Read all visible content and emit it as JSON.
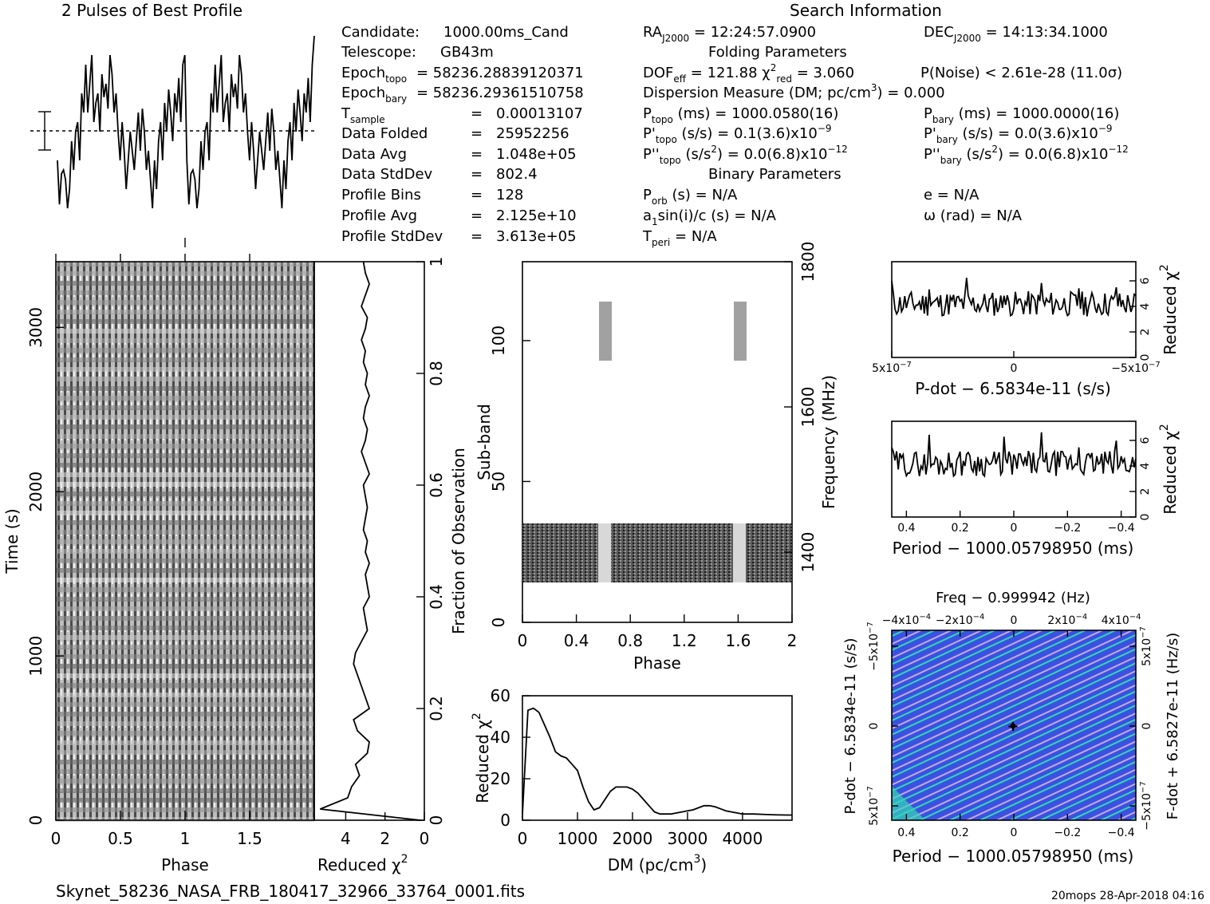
{
  "header": {
    "profile_title": "2 Pulses of Best Profile",
    "search_title": "Search Information",
    "folding_title": "Folding Parameters",
    "binary_title": "Binary Parameters"
  },
  "info": {
    "col1": [
      [
        "Candidate:",
        "1000.00ms_Cand"
      ],
      [
        "Telescope:",
        "GB43m"
      ],
      [
        "Epoch_topo",
        "= 58236.28839120371"
      ],
      [
        "Epoch_bary",
        "= 58236.29361510758"
      ],
      [
        "T_sample",
        "=",
        "0.00013107"
      ],
      [
        "Data Folded",
        "=",
        "25952256"
      ],
      [
        "Data Avg",
        "=",
        "1.048e+05"
      ],
      [
        "Data StdDev",
        "=",
        "802.4"
      ],
      [
        "Profile Bins",
        "=",
        "128"
      ],
      [
        "Profile Avg",
        "=",
        "2.125e+10"
      ],
      [
        "Profile StdDev",
        "=",
        "3.613e+05"
      ]
    ],
    "ra": "12:24:57.0900",
    "dec": "14:13:34.1000",
    "dof": "121.88",
    "chi2_red": "3.060",
    "pnoise": "P(Noise) < 2.61e-28   (11.0σ)",
    "dm_line": "Dispersion Measure (DM; pc/cm",
    "dm_value": ") = 0.000",
    "p_topo": "1000.0580(16)",
    "p_bary": "1000.0000(16)",
    "pd_topo": "0.1(3.6)x10",
    "pd_bary": "0.0(3.6)x10",
    "pdd_topo": "0.0(6.8)x10",
    "pdd_bary": "0.0(6.8)x10",
    "exp9": "−9",
    "exp12": "−12",
    "porb": "N/A",
    "ecc": "N/A",
    "a1sini": "N/A",
    "omega": "N/A",
    "tperi": "N/A"
  },
  "footer": {
    "filename": "Skynet_58236_NASA_FRB_180417_32966_33764_0001.fits",
    "stamp": "20mops 28-Apr-2018 04:16"
  },
  "colors": {
    "ink": "#000000",
    "subband_shade": "#888888",
    "pdot_bg": "#3a52e0",
    "pdot_streak": "#33d6b8",
    "pdot_pink": "#c9a6e8"
  },
  "chart_data": [
    {
      "id": "profile",
      "type": "line",
      "title": "2 Pulses of Best Profile",
      "xlim": [
        0,
        2
      ],
      "description_values": [
        0.35,
        0.12,
        0.28,
        0.3,
        0.25,
        0.1,
        0.2,
        0.45,
        0.3,
        0.5,
        0.55,
        0.35,
        0.7,
        0.6,
        0.85,
        0.6,
        0.75,
        0.9,
        0.55,
        0.65,
        0.7,
        0.5,
        0.8,
        0.68,
        0.75,
        0.62,
        0.9,
        0.8,
        0.6,
        0.7,
        0.5,
        0.35,
        0.55,
        0.4,
        0.2,
        0.35,
        0.5,
        0.4,
        0.3,
        0.45,
        0.6,
        0.4,
        0.62,
        0.5,
        0.3,
        0.4,
        0.25,
        0.1,
        0.35,
        0.2,
        0.45,
        0.55,
        0.35,
        0.65,
        0.5,
        0.72,
        0.6,
        0.45,
        0.7,
        0.6,
        0.78,
        0.55,
        0.85,
        0.9,
        0.35,
        0.12,
        0.28,
        0.3,
        0.25,
        0.1,
        0.2,
        0.45,
        0.3,
        0.5,
        0.55,
        0.35,
        0.7,
        0.6,
        0.85,
        0.6,
        0.75,
        0.9,
        0.55,
        0.65,
        0.7,
        0.5,
        0.8,
        0.68,
        0.75,
        0.62,
        0.9,
        0.8,
        0.6,
        0.7,
        0.5,
        0.35,
        0.55,
        0.4,
        0.2,
        0.35,
        0.5,
        0.4,
        0.3,
        0.45,
        0.6,
        0.4,
        0.62,
        0.5,
        0.3,
        0.4,
        0.25,
        0.1,
        0.35,
        0.2,
        0.45,
        0.55,
        0.35,
        0.65,
        0.5,
        0.72,
        0.6,
        0.45,
        0.7,
        0.6,
        0.78,
        0.55,
        0.85,
        1.0
      ]
    },
    {
      "id": "time-phase",
      "type": "heatmap",
      "xlabel": "Phase",
      "ylabel": "Time (s)",
      "xlim": [
        0,
        2
      ],
      "ylim": [
        0,
        3400
      ],
      "xticks": [
        "0",
        "0.5",
        "1",
        "1.5"
      ],
      "yticks": [
        "0",
        "1000",
        "2000",
        "3000"
      ]
    },
    {
      "id": "reduced-chi2-time",
      "type": "line",
      "xlabel": "Reduced χ",
      "xticks": [
        "4",
        "2",
        "0"
      ],
      "right_axis_label": "Fraction of Observation",
      "right_ticks": [
        "0",
        "0.2",
        "0.4",
        "0.6",
        "0.8",
        "1"
      ],
      "xlim": [
        5.6,
        0
      ],
      "ylim": [
        0,
        1
      ],
      "y": [
        0.0,
        0.02,
        0.04,
        0.06,
        0.08,
        0.1,
        0.12,
        0.14,
        0.16,
        0.18,
        0.2,
        0.22,
        0.24,
        0.26,
        0.28,
        0.3,
        0.32,
        0.34,
        0.36,
        0.38,
        0.4,
        0.42,
        0.44,
        0.46,
        0.48,
        0.5,
        0.52,
        0.54,
        0.56,
        0.58,
        0.6,
        0.62,
        0.64,
        0.66,
        0.68,
        0.7,
        0.72,
        0.74,
        0.76,
        0.78,
        0.8,
        0.82,
        0.84,
        0.86,
        0.88,
        0.9,
        0.92,
        0.94,
        0.96,
        0.98,
        1.0
      ],
      "x": [
        0.2,
        5.3,
        3.9,
        3.7,
        3.3,
        3.5,
        2.9,
        2.8,
        3.4,
        3.6,
        2.8,
        3.0,
        3.2,
        3.4,
        3.6,
        3.5,
        3.2,
        2.9,
        3.0,
        3.1,
        2.8,
        2.9,
        3.0,
        2.8,
        3.0,
        2.9,
        3.1,
        3.0,
        2.9,
        3.0,
        3.1,
        2.8,
        3.0,
        3.2,
        3.0,
        2.9,
        3.1,
        3.0,
        2.8,
        3.0,
        2.9,
        3.1,
        3.0,
        3.2,
        3.0,
        2.9,
        3.2,
        3.0,
        2.8,
        3.0,
        3.1
      ]
    },
    {
      "id": "subband-phase",
      "type": "heatmap",
      "xlabel": "Phase",
      "ylabel": "Sub-band",
      "right_axis_label": "Frequency (MHz)",
      "xlim": [
        0,
        2
      ],
      "ylim": [
        0,
        128
      ],
      "xticks": [
        "0",
        "0.4",
        "0.8",
        "1.2",
        "1.6",
        "2"
      ],
      "yticks": [
        "0",
        "50",
        "100"
      ],
      "right_ticks": [
        "1400",
        "1600",
        "1800"
      ]
    },
    {
      "id": "dm-chi2",
      "type": "line",
      "xlabel": "DM (pc/cm",
      "ylabel": "Reduced χ",
      "xlim": [
        0,
        4900
      ],
      "ylim": [
        0,
        60
      ],
      "xticks": [
        "0",
        "1000",
        "2000",
        "3000",
        "4000"
      ],
      "yticks": [
        "0",
        "20",
        "40",
        "60"
      ],
      "x": [
        0,
        100,
        200,
        300,
        400,
        500,
        600,
        700,
        800,
        900,
        1000,
        1100,
        1200,
        1300,
        1400,
        1500,
        1600,
        1700,
        1800,
        1900,
        2000,
        2100,
        2200,
        2300,
        2400,
        2500,
        2600,
        2700,
        2800,
        2900,
        3000,
        3100,
        3200,
        3300,
        3400,
        3500,
        3600,
        3700,
        3800,
        3900,
        4000,
        4200,
        4400,
        4600,
        4800,
        4900
      ],
      "y": [
        3,
        53,
        54,
        52,
        46,
        40,
        33,
        31,
        30,
        27,
        24,
        16,
        9,
        5,
        6,
        10,
        14,
        16,
        16,
        16,
        15,
        13,
        10,
        7,
        4,
        3,
        3,
        3,
        3.5,
        4,
        4.5,
        5,
        6,
        7,
        7,
        6.5,
        5.5,
        4.5,
        4,
        3.5,
        3,
        3,
        2.8,
        2.6,
        2.5,
        2.5
      ]
    },
    {
      "id": "pdot-chi2",
      "type": "line",
      "xlabel": "P-dot − 6.5834e-11 (s/s)",
      "ylabel": "Reduced χ",
      "xticks": [
        "5x10",
        "0",
        "−5x10"
      ],
      "yticks": [
        "0",
        "2",
        "4",
        "6"
      ],
      "ylim": [
        0,
        7.5
      ]
    },
    {
      "id": "period-chi2",
      "type": "line",
      "xlabel": "Period − 1000.05798950 (ms)",
      "ylabel": "Reduced χ",
      "xticks": [
        "0.4",
        "0.2",
        "0",
        "−0.2",
        "−0.4"
      ],
      "yticks": [
        "0",
        "2",
        "4",
        "6"
      ],
      "ylim": [
        0,
        7.5
      ]
    },
    {
      "id": "p-pdot-plane",
      "type": "heatmap",
      "title": "Freq − 0.999942 (Hz)",
      "xlabel": "Period − 1000.05798950 (ms)",
      "ylabel": "P-dot − 6.5834e-11 (s/s)",
      "right_axis_label": "F-dot + 6.5827e-11 (Hz/s)",
      "xticks": [
        "0.4",
        "0.2",
        "0",
        "−0.2",
        "−0.4"
      ],
      "top_ticks": [
        "−4x10",
        "−2x10",
        "0",
        "2x10",
        "4x10"
      ],
      "left_ticks": [
        "−5x10",
        "0",
        "5x10"
      ],
      "right_ticks": [
        "5x10",
        "0",
        "−5x10"
      ]
    }
  ]
}
